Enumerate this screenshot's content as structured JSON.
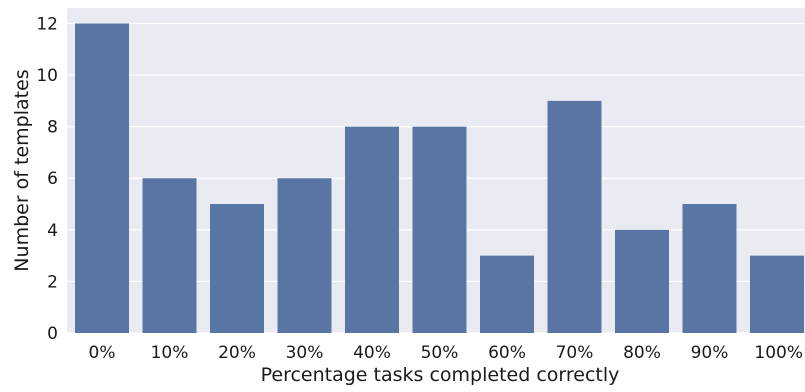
{
  "chart_data": {
    "type": "bar",
    "title": "",
    "xlabel": "Percentage tasks completed correctly",
    "ylabel": "Number of templates",
    "categories": [
      "0%",
      "10%",
      "20%",
      "30%",
      "40%",
      "50%",
      "60%",
      "70%",
      "80%",
      "90%",
      "100%"
    ],
    "values": [
      12,
      6,
      5,
      6,
      8,
      8,
      3,
      9,
      4,
      5,
      3
    ],
    "ylim": [
      0,
      12.6
    ],
    "yticks": [
      "0",
      "2",
      "4",
      "6",
      "8",
      "10",
      "12"
    ],
    "grid": true,
    "legend": "none"
  },
  "colors": {
    "bar": "#5875a4",
    "plot_background": "#eaeaf2",
    "grid": "#ffffff"
  }
}
